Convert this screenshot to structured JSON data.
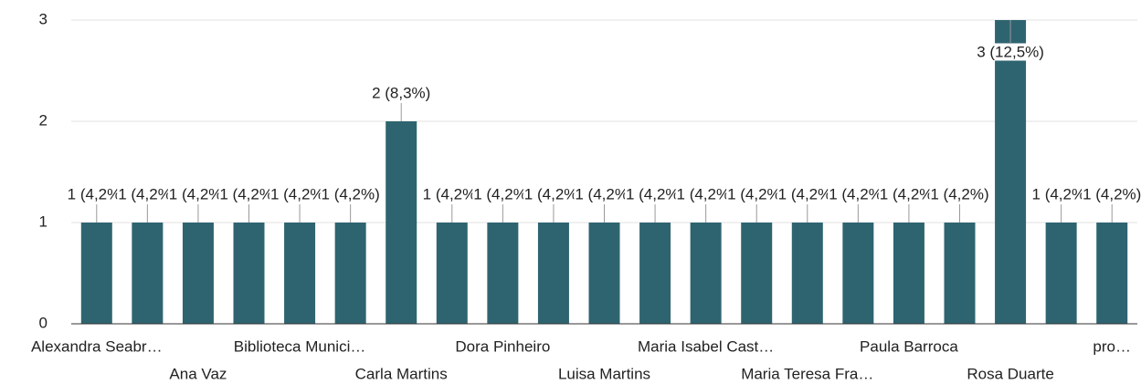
{
  "chart_data": {
    "type": "bar",
    "categories": [
      "Alexandra Seabr…",
      null,
      "Ana Vaz",
      null,
      "Biblioteca Munici…",
      null,
      "Carla Martins",
      null,
      "Dora Pinheiro",
      null,
      "Luisa Martins",
      null,
      "Maria Isabel Cast…",
      null,
      "Maria Teresa Fra…",
      null,
      "Paula Barroca",
      null,
      "Rosa Duarte",
      null,
      "pro…"
    ],
    "values": [
      1,
      1,
      1,
      1,
      1,
      1,
      2,
      1,
      1,
      1,
      1,
      1,
      1,
      1,
      1,
      1,
      1,
      1,
      3,
      1,
      1
    ],
    "value_labels": [
      "1 (4,2%)",
      "1 (4,2%)",
      "1 (4,2%)",
      "1 (4,2%)",
      "1 (4,2%)",
      "1 (4,2%)",
      "2 (8,3%)",
      "1 (4,2%)",
      "1 (4,2%)",
      "1 (4,2%)",
      "1 (4,2%)",
      "1 (4,2%)",
      "1 (4,2%)",
      "1 (4,2%)",
      "1 (4,2%)",
      "1 (4,2%)",
      "1 (4,2%)",
      "1 (4,2%)",
      "3 (12,5%)",
      "1 (4,2%)",
      "1 (4,2%)"
    ],
    "color": "#2e6470",
    "ylim": [
      0,
      3
    ],
    "yticks": [
      0,
      1,
      2,
      3
    ],
    "grid": true
  }
}
